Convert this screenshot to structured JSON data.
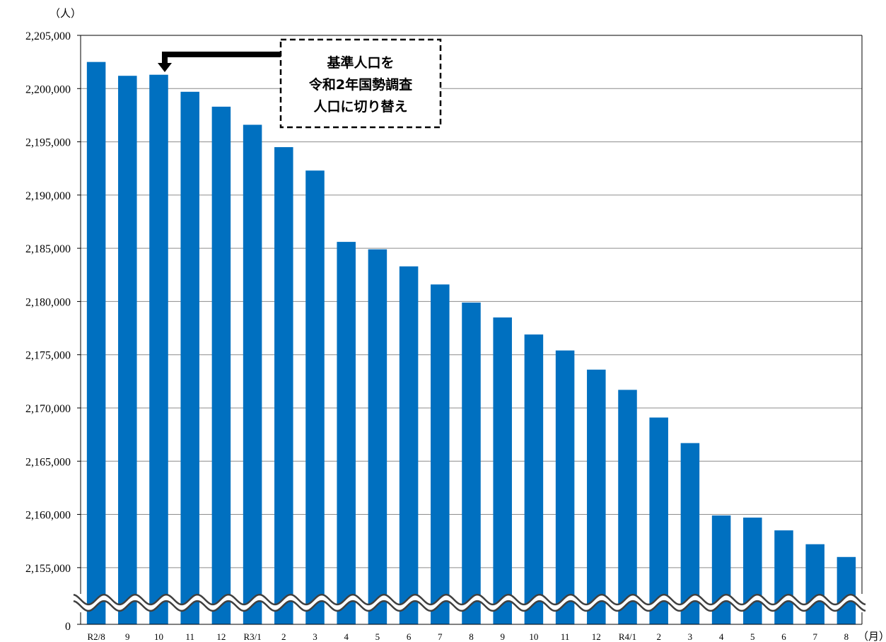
{
  "chart_data": {
    "type": "bar",
    "y_unit": "（人）",
    "x_unit": "（月）",
    "categories": [
      "R2/8",
      "9",
      "10",
      "11",
      "12",
      "R3/1",
      "2",
      "3",
      "4",
      "5",
      "6",
      "7",
      "8",
      "9",
      "10",
      "11",
      "12",
      "R4/1",
      "2",
      "3",
      "4",
      "5",
      "6",
      "7",
      "8"
    ],
    "values": [
      2202500,
      2201200,
      2201300,
      2199700,
      2198300,
      2196600,
      2194500,
      2192300,
      2185600,
      2184900,
      2183300,
      2181600,
      2179900,
      2178500,
      2176900,
      2175400,
      2173600,
      2171700,
      2169100,
      2166700,
      2159900,
      2159700,
      2158500,
      2157200,
      2156000
    ],
    "ylim": [
      2152000,
      2205000
    ],
    "axis_break": true,
    "yticks": [
      {
        "label": "2,205,000",
        "value": 2205000
      },
      {
        "label": "2,200,000",
        "value": 2200000
      },
      {
        "label": "2,195,000",
        "value": 2195000
      },
      {
        "label": "2,190,000",
        "value": 2190000
      },
      {
        "label": "2,185,000",
        "value": 2185000
      },
      {
        "label": "2,180,000",
        "value": 2180000
      },
      {
        "label": "2,175,000",
        "value": 2175000
      },
      {
        "label": "2,170,000",
        "value": 2170000
      },
      {
        "label": "2,165,000",
        "value": 2165000
      },
      {
        "label": "2,160,000",
        "value": 2160000
      },
      {
        "label": "2,155,000",
        "value": 2155000
      }
    ],
    "zero_label": "0",
    "grid": true,
    "bar_color": "#0070C0",
    "annotation": {
      "lines": [
        "基準人口を",
        "令和2年国勢調査",
        "人口に切り替え"
      ],
      "points_to_category": "10"
    }
  }
}
